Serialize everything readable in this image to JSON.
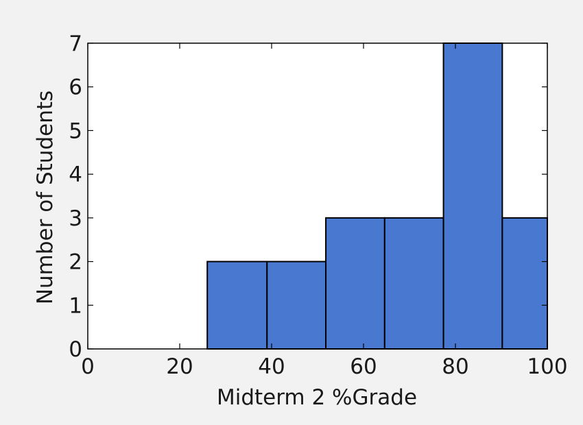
{
  "chart_data": {
    "type": "histogram",
    "title": "",
    "xlabel": "Midterm 2 %Grade",
    "ylabel": "Number of Students",
    "xlim": [
      0,
      100
    ],
    "ylim": [
      0,
      7
    ],
    "xticks": [
      0,
      20,
      40,
      60,
      80,
      100
    ],
    "yticks": [
      0,
      1,
      2,
      3,
      4,
      5,
      6,
      7
    ],
    "bins": [
      {
        "start": 26,
        "end": 39,
        "count": 2
      },
      {
        "start": 39,
        "end": 51.8,
        "count": 2
      },
      {
        "start": 51.8,
        "end": 64.6,
        "count": 3
      },
      {
        "start": 64.6,
        "end": 77.4,
        "count": 3
      },
      {
        "start": 77.4,
        "end": 90.2,
        "count": 7
      },
      {
        "start": 90.2,
        "end": 100,
        "count": 3
      }
    ],
    "bar_color": "#4878cf",
    "edge_color": "#000000",
    "grid": false,
    "legend": "none"
  }
}
